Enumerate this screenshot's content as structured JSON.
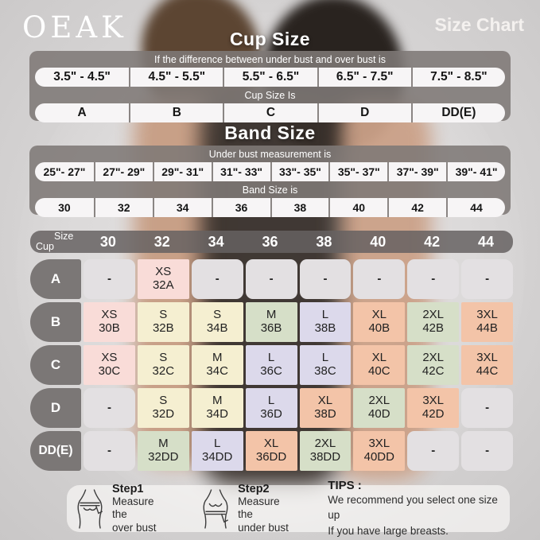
{
  "brand": "OEAK",
  "page_title": "Size Chart",
  "cup_section": {
    "title": "Cup Size",
    "instruction": "If the difference between under bust and over bust is",
    "ranges": [
      "3.5\" - 4.5\"",
      "4.5\" - 5.5\"",
      "5.5\" - 6.5\"",
      "6.5\" - 7.5\"",
      "7.5\" - 8.5\""
    ],
    "result_label": "Cup Size Is",
    "cups": [
      "A",
      "B",
      "C",
      "D",
      "DD(E)"
    ]
  },
  "band_section": {
    "title": "Band Size",
    "instruction": "Under bust measurement is",
    "ranges": [
      "25\"- 27\"",
      "27\"- 29\"",
      "29\"- 31\"",
      "31\"- 33\"",
      "33\"- 35\"",
      "35\"- 37\"",
      "37\"- 39\"",
      "39\"- 41\""
    ],
    "result_label": "Band Size is",
    "bands": [
      "30",
      "32",
      "34",
      "36",
      "38",
      "40",
      "42",
      "44"
    ]
  },
  "size_matrix": {
    "corner_top": "Size",
    "corner_bottom": "Cup",
    "columns": [
      "30",
      "32",
      "34",
      "36",
      "38",
      "40",
      "42",
      "44"
    ],
    "rows": [
      {
        "label": "A",
        "cells": [
          {
            "size": "-",
            "band": "",
            "color": "gray"
          },
          {
            "size": "XS",
            "band": "32A",
            "color": "pink"
          },
          {
            "size": "-",
            "band": "",
            "color": "gray"
          },
          {
            "size": "-",
            "band": "",
            "color": "gray"
          },
          {
            "size": "-",
            "band": "",
            "color": "gray"
          },
          {
            "size": "-",
            "band": "",
            "color": "gray"
          },
          {
            "size": "-",
            "band": "",
            "color": "gray"
          },
          {
            "size": "-",
            "band": "",
            "color": "gray"
          }
        ]
      },
      {
        "label": "B",
        "cells": [
          {
            "size": "XS",
            "band": "30B",
            "color": "pink"
          },
          {
            "size": "S",
            "band": "32B",
            "color": "yellow"
          },
          {
            "size": "S",
            "band": "34B",
            "color": "yellow"
          },
          {
            "size": "M",
            "band": "36B",
            "color": "green"
          },
          {
            "size": "L",
            "band": "38B",
            "color": "purple"
          },
          {
            "size": "XL",
            "band": "40B",
            "color": "peach"
          },
          {
            "size": "2XL",
            "band": "42B",
            "color": "green"
          },
          {
            "size": "3XL",
            "band": "44B",
            "color": "peach"
          }
        ]
      },
      {
        "label": "C",
        "cells": [
          {
            "size": "XS",
            "band": "30C",
            "color": "pink"
          },
          {
            "size": "S",
            "band": "32C",
            "color": "yellow"
          },
          {
            "size": "M",
            "band": "34C",
            "color": "yellow"
          },
          {
            "size": "L",
            "band": "36C",
            "color": "purple"
          },
          {
            "size": "L",
            "band": "38C",
            "color": "purple"
          },
          {
            "size": "XL",
            "band": "40C",
            "color": "peach"
          },
          {
            "size": "2XL",
            "band": "42C",
            "color": "green"
          },
          {
            "size": "3XL",
            "band": "44C",
            "color": "peach"
          }
        ]
      },
      {
        "label": "D",
        "cells": [
          {
            "size": "-",
            "band": "",
            "color": "gray"
          },
          {
            "size": "S",
            "band": "32D",
            "color": "yellow"
          },
          {
            "size": "M",
            "band": "34D",
            "color": "yellow"
          },
          {
            "size": "L",
            "band": "36D",
            "color": "purple"
          },
          {
            "size": "XL",
            "band": "38D",
            "color": "peach"
          },
          {
            "size": "2XL",
            "band": "40D",
            "color": "green"
          },
          {
            "size": "3XL",
            "band": "42D",
            "color": "peach"
          },
          {
            "size": "-",
            "band": "",
            "color": "gray"
          }
        ]
      },
      {
        "label": "DD(E)",
        "cells": [
          {
            "size": "-",
            "band": "",
            "color": "gray"
          },
          {
            "size": "M",
            "band": "32DD",
            "color": "green"
          },
          {
            "size": "L",
            "band": "34DD",
            "color": "purple"
          },
          {
            "size": "XL",
            "band": "36DD",
            "color": "peach"
          },
          {
            "size": "2XL",
            "band": "38DD",
            "color": "green"
          },
          {
            "size": "3XL",
            "band": "40DD",
            "color": "peach"
          },
          {
            "size": "-",
            "band": "",
            "color": "gray"
          },
          {
            "size": "-",
            "band": "",
            "color": "gray"
          }
        ]
      }
    ]
  },
  "footer": {
    "step1": {
      "title": "Step1",
      "line1": "Measure the",
      "line2": "over bust"
    },
    "step2": {
      "title": "Step2",
      "line1": "Measure the",
      "line2": "under bust"
    },
    "tips": {
      "title": "TIPS :",
      "line1": "We recommend you select one size up",
      "line2": "If you have large breasts."
    }
  },
  "colors": {
    "gray": "#e3e0e2",
    "pink": "#f9dcd8",
    "yellow": "#f5efd1",
    "green": "#d6dfc8",
    "purple": "#dcd9eb",
    "peach": "#f3c4a8",
    "panel_gray": "#7e7976",
    "pill_dark": "#7b7776",
    "capsule_white": "#f7f5f6",
    "title_white": "#f4f1ef"
  }
}
